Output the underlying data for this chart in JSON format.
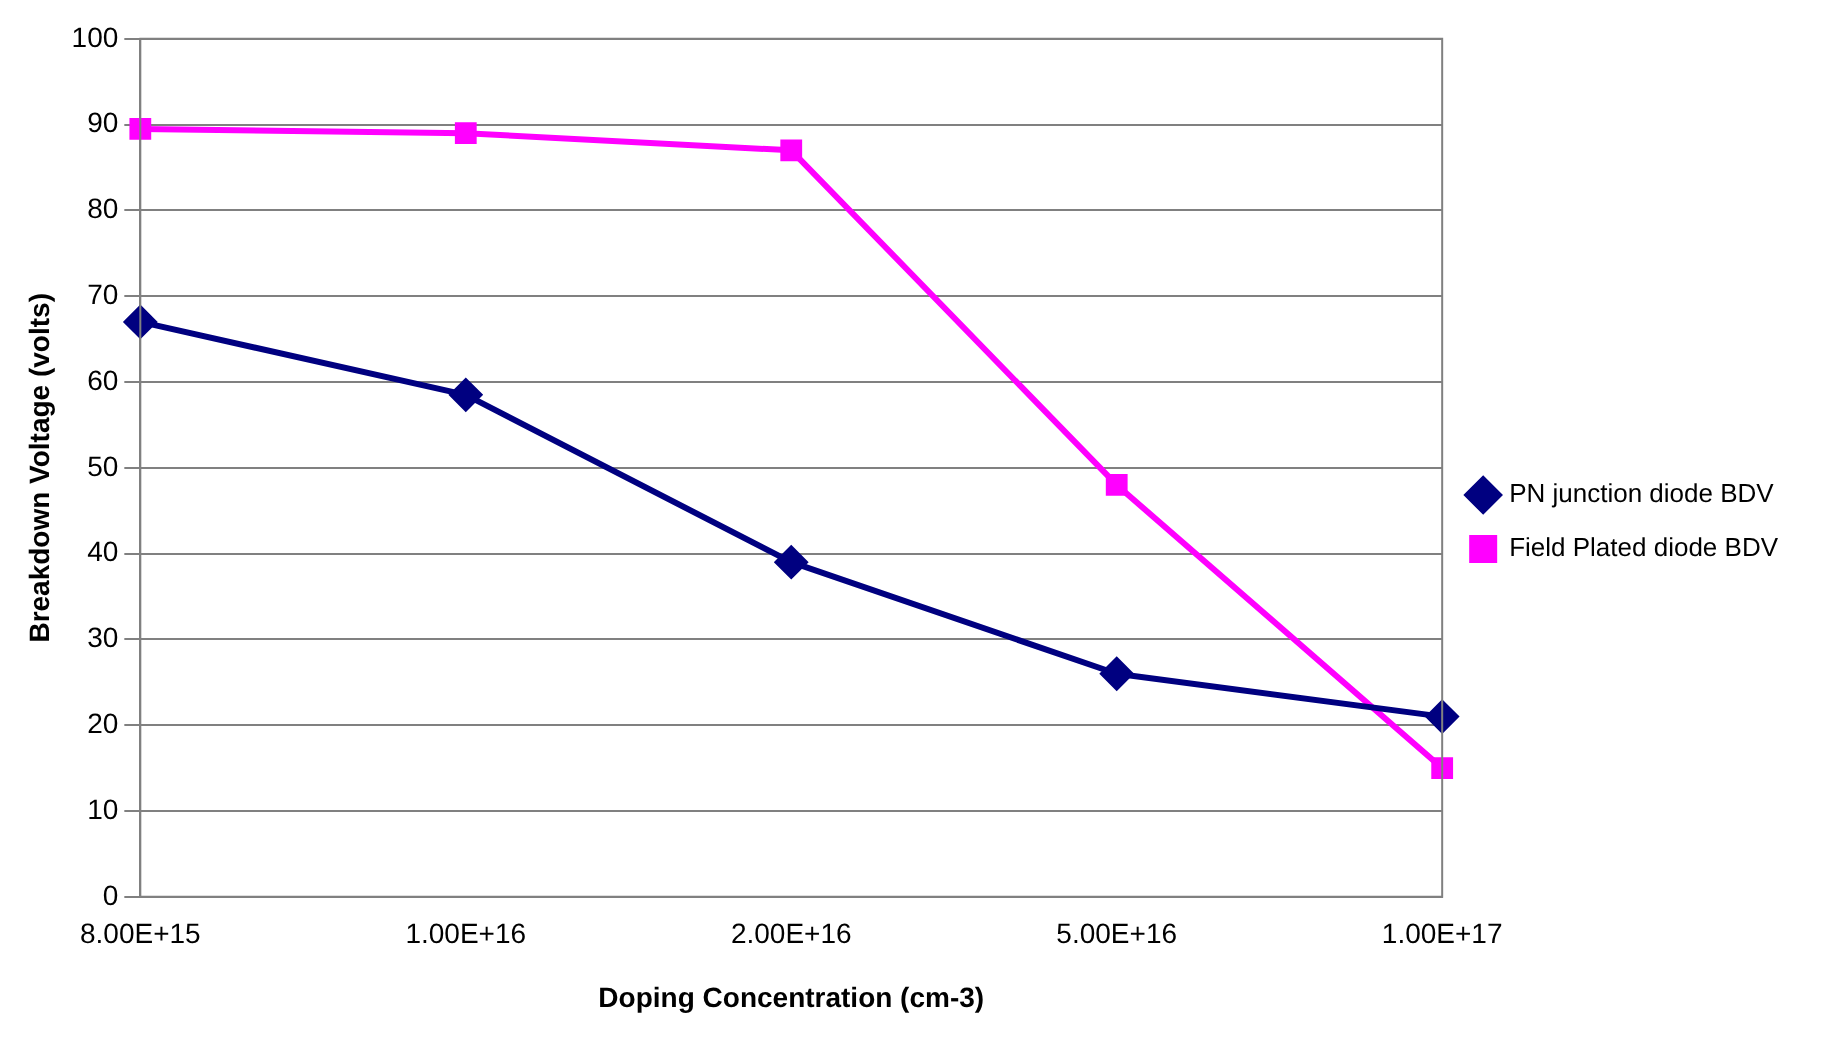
{
  "chart_data": {
    "type": "line",
    "xlabel": "Doping Concentration (cm-3)",
    "ylabel": "Breakdown Voltage (volts)",
    "categories": [
      "8.00E+15",
      "1.00E+16",
      "2.00E+16",
      "5.00E+16",
      "1.00E+17"
    ],
    "series": [
      {
        "name": "PN junction diode BDV",
        "color": "#000080",
        "marker": "diamond",
        "values": [
          67,
          58.5,
          39,
          26,
          21
        ]
      },
      {
        "name": "Field Plated diode BDV",
        "color": "#ff00ff",
        "marker": "square",
        "values": [
          89.5,
          89,
          87,
          48,
          15
        ]
      }
    ],
    "ylim": [
      0,
      100
    ],
    "yticks": [
      0,
      10,
      20,
      30,
      40,
      50,
      60,
      70,
      80,
      90,
      100
    ],
    "grid": "y",
    "legend": "right",
    "line_style": "solid"
  }
}
